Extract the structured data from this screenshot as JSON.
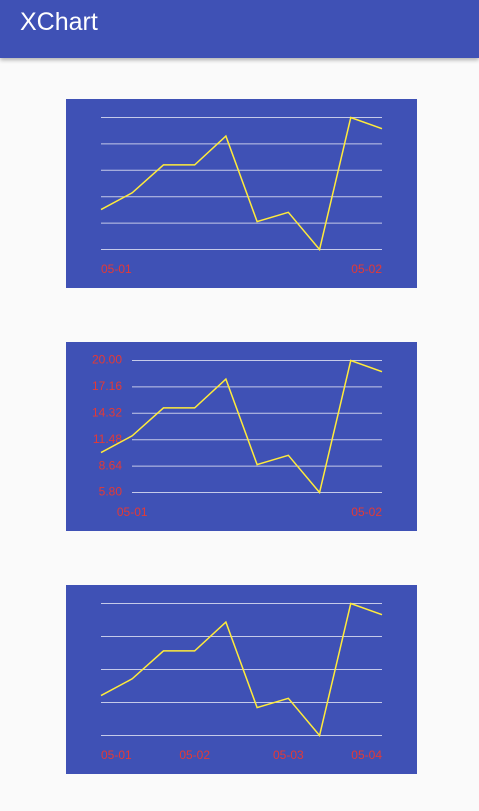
{
  "app_bar": {
    "title": "XChart"
  },
  "chart_data": [
    {
      "type": "line",
      "color": "#ffeb3b",
      "grid": true,
      "categories": [
        "05-01",
        null,
        null,
        null,
        null,
        null,
        null,
        null,
        null,
        "05-02"
      ],
      "values": [
        10.1,
        11.9,
        14.9,
        14.9,
        18.0,
        8.8,
        9.8,
        5.8,
        20.0,
        18.8
      ],
      "ylim": [
        5.8,
        20
      ],
      "grid_lines": [
        5.8,
        8.64,
        11.48,
        14.32,
        17.16,
        20
      ]
    },
    {
      "type": "line",
      "color": "#ffeb3b",
      "grid": true,
      "categories": [
        null,
        "05-01",
        null,
        null,
        null,
        null,
        null,
        null,
        null,
        "05-02"
      ],
      "values": [
        10.1,
        11.9,
        14.9,
        14.9,
        18.0,
        8.8,
        9.8,
        5.8,
        20.0,
        18.8
      ],
      "ylim": [
        5.8,
        20
      ],
      "yticks": [
        {
          "value": 5.8,
          "label": "5.80"
        },
        {
          "value": 8.64,
          "label": "8.64"
        },
        {
          "value": 11.48,
          "label": "11.48"
        },
        {
          "value": 14.32,
          "label": "14.32"
        },
        {
          "value": 17.16,
          "label": "17.16"
        },
        {
          "value": 20,
          "label": "20.00"
        }
      ]
    },
    {
      "type": "line",
      "color": "#ffeb3b",
      "grid": true,
      "categories": [
        "05-01",
        null,
        null,
        "05-02",
        null,
        null,
        "05-03",
        null,
        null,
        "05-04"
      ],
      "values": [
        10.1,
        11.9,
        14.9,
        14.9,
        18.0,
        8.8,
        9.8,
        5.8,
        20.0,
        18.8
      ],
      "ylim": [
        5.8,
        20
      ],
      "grid_lines": [
        5.8,
        9.35,
        12.9,
        16.45,
        20
      ]
    }
  ]
}
